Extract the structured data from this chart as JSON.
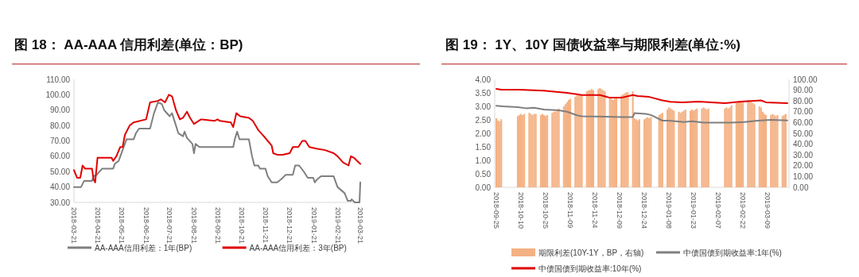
{
  "chart_data": [
    {
      "type": "line",
      "title": "图 18： AA-AAA 信用利差(单位：BP)",
      "xlim": [
        "2018-03-21",
        "2019-03-21"
      ],
      "xticks": [
        "2018-03-21",
        "2018-04-21",
        "2018-05-21",
        "2018-06-21",
        "2018-07-21",
        "2018-08-21",
        "2018-09-21",
        "2018-10-21",
        "2018-11-21",
        "2018-12-21",
        "2019-01-21",
        "2019-02-21",
        "2019-03-21"
      ],
      "ylim": [
        30,
        110
      ],
      "yticks": [
        {
          "value": 30,
          "label": "30.00"
        },
        {
          "value": 40,
          "label": "40.00"
        },
        {
          "value": 50,
          "label": "50.00"
        },
        {
          "value": 60,
          "label": "60.00"
        },
        {
          "value": 70,
          "label": "70.00"
        },
        {
          "value": 80,
          "label": "80.00"
        },
        {
          "value": 90,
          "label": "90.00"
        },
        {
          "value": 100,
          "label": "100.00"
        },
        {
          "value": 110,
          "label": "110.00"
        }
      ],
      "legend": "bottom",
      "series": [
        {
          "name": "AA-AAA信用利差：1年(BP)",
          "color": "#7f7f7f",
          "x": [
            "2018-03-21",
            "2018-03-30",
            "2018-04-03",
            "2018-04-13",
            "2018-04-15",
            "2018-04-19",
            "2018-04-26",
            "2018-05-10",
            "2018-05-12",
            "2018-05-17",
            "2018-05-22",
            "2018-05-27",
            "2018-06-05",
            "2018-06-08",
            "2018-06-12",
            "2018-06-26",
            "2018-07-01",
            "2018-07-06",
            "2018-07-11",
            "2018-07-14",
            "2018-07-21",
            "2018-07-24",
            "2018-07-29",
            "2018-08-01",
            "2018-08-07",
            "2018-08-09",
            "2018-08-12",
            "2018-08-19",
            "2018-08-21",
            "2018-08-23",
            "2018-08-28",
            "2018-10-10",
            "2018-10-12",
            "2018-10-15",
            "2018-10-18",
            "2018-10-30",
            "2018-11-03",
            "2018-11-06",
            "2018-11-11",
            "2018-11-13",
            "2018-11-20",
            "2018-11-23",
            "2018-11-28",
            "2018-12-05",
            "2018-12-10",
            "2018-12-16",
            "2018-12-25",
            "2018-12-28",
            "2019-01-02",
            "2019-01-08",
            "2019-01-13",
            "2019-01-20",
            "2019-01-22",
            "2019-01-25",
            "2019-01-30",
            "2019-02-15",
            "2019-02-20",
            "2019-03-01",
            "2019-03-05",
            "2019-03-09",
            "2019-03-10",
            "2019-03-14",
            "2019-03-20",
            "2019-03-21"
          ],
          "values": [
            40,
            40,
            44,
            44,
            47,
            48,
            52,
            52,
            55,
            57,
            64,
            71,
            71,
            75,
            78,
            78,
            88,
            95,
            94,
            90,
            86,
            88,
            80,
            75,
            73,
            76,
            72,
            68,
            62,
            68,
            66,
            66,
            71,
            76,
            71,
            71,
            60,
            54,
            54,
            52,
            52,
            47,
            43,
            43,
            45,
            48,
            48,
            54,
            54,
            50,
            46,
            46,
            43,
            45,
            47,
            47,
            40,
            36,
            31,
            31,
            32,
            30,
            30,
            43
          ]
        },
        {
          "name": "AA-AAA信用利差：3年(BP)",
          "color": "#e00000",
          "x": [
            "2018-03-21",
            "2018-03-25",
            "2018-03-29",
            "2018-04-01",
            "2018-04-04",
            "2018-04-13",
            "2018-04-15",
            "2018-04-17",
            "2018-04-20",
            "2018-05-08",
            "2018-05-10",
            "2018-05-14",
            "2018-05-19",
            "2018-05-22",
            "2018-05-25",
            "2018-05-31",
            "2018-06-05",
            "2018-06-21",
            "2018-06-26",
            "2018-07-06",
            "2018-07-10",
            "2018-07-15",
            "2018-07-20",
            "2018-07-24",
            "2018-07-29",
            "2018-08-03",
            "2018-08-07",
            "2018-08-12",
            "2018-08-16",
            "2018-08-21",
            "2018-08-30",
            "2018-09-16",
            "2018-09-20",
            "2018-09-23",
            "2018-10-07",
            "2018-10-10",
            "2018-10-14",
            "2018-10-19",
            "2018-10-30",
            "2018-11-04",
            "2018-11-11",
            "2018-11-18",
            "2018-11-23",
            "2018-11-28",
            "2018-11-30",
            "2018-12-05",
            "2018-12-12",
            "2018-12-21",
            "2018-12-25",
            "2019-01-01",
            "2019-01-06",
            "2019-01-10",
            "2019-01-15",
            "2019-01-24",
            "2019-02-04",
            "2019-02-15",
            "2019-02-20",
            "2019-02-27",
            "2019-03-06",
            "2019-03-09",
            "2019-03-13",
            "2019-03-17",
            "2019-03-21"
          ],
          "values": [
            51,
            46,
            46,
            54,
            52,
            52,
            45,
            43,
            59,
            59,
            57,
            60,
            66,
            66,
            74,
            80,
            82,
            84,
            95,
            96,
            97,
            95,
            100,
            99,
            90,
            84,
            85,
            89,
            85,
            81,
            84,
            83,
            84,
            83,
            82,
            79,
            88,
            86,
            85,
            83,
            77,
            73,
            70,
            67,
            62,
            61,
            61,
            62,
            66,
            66,
            70,
            70,
            66,
            65,
            64,
            62,
            60,
            56,
            54,
            60,
            59,
            57,
            55
          ]
        }
      ]
    },
    {
      "type": "bar",
      "title": "图 19： 1Y、10Y 国债收益率与期限利差(单位:%)",
      "xlim": [
        "2018-09-24",
        "2019-03-22"
      ],
      "xticks": [
        "2018-09-25",
        "2018-10-10",
        "2018-10-25",
        "2018-11-09",
        "2018-11-24",
        "2018-12-09",
        "2018-12-24",
        "2019-01-08",
        "2019-01-23",
        "2019-02-07",
        "2019-02-22",
        "2019-03-09"
      ],
      "ylim": [
        0,
        4
      ],
      "yticks": [
        {
          "value": 0,
          "label": "0.00"
        },
        {
          "value": 0.5,
          "label": "0.50"
        },
        {
          "value": 1,
          "label": "1.00"
        },
        {
          "value": 1.5,
          "label": "1.50"
        },
        {
          "value": 2,
          "label": "2.00"
        },
        {
          "value": 2.5,
          "label": "2.50"
        },
        {
          "value": 3,
          "label": "3.00"
        },
        {
          "value": 3.5,
          "label": "3.50"
        },
        {
          "value": 4,
          "label": "4.00"
        }
      ],
      "y2lim": [
        0,
        100
      ],
      "y2ticks": [
        {
          "value": 0,
          "label": "0.00"
        },
        {
          "value": 10,
          "label": "10.00"
        },
        {
          "value": 20,
          "label": "20.00"
        },
        {
          "value": 30,
          "label": "30.00"
        },
        {
          "value": 40,
          "label": "40.00"
        },
        {
          "value": 50,
          "label": "50.00"
        },
        {
          "value": 60,
          "label": "60.00"
        },
        {
          "value": 70,
          "label": "70.00"
        },
        {
          "value": 80,
          "label": "80.00"
        },
        {
          "value": 90,
          "label": "90.00"
        },
        {
          "value": 100,
          "label": "100.00"
        }
      ],
      "legend": "bottom",
      "series": [
        {
          "name": "期限利差(10Y-1Y，BP，右轴)",
          "type": "bar",
          "axis": "y2",
          "color": "#f4b183",
          "x": [
            "2018-09-25",
            "2018-09-26",
            "2018-09-27",
            "2018-09-28",
            "2018-10-08",
            "2018-10-09",
            "2018-10-10",
            "2018-10-11",
            "2018-10-12",
            "2018-10-15",
            "2018-10-16",
            "2018-10-17",
            "2018-10-18",
            "2018-10-19",
            "2018-10-22",
            "2018-10-23",
            "2018-10-24",
            "2018-10-25",
            "2018-10-26",
            "2018-10-29",
            "2018-10-30",
            "2018-10-31",
            "2018-11-01",
            "2018-11-02",
            "2018-11-05",
            "2018-11-06",
            "2018-11-07",
            "2018-11-08",
            "2018-11-09",
            "2018-11-12",
            "2018-11-13",
            "2018-11-14",
            "2018-11-15",
            "2018-11-16",
            "2018-11-19",
            "2018-11-20",
            "2018-11-21",
            "2018-11-22",
            "2018-11-23",
            "2018-11-26",
            "2018-11-27",
            "2018-11-28",
            "2018-11-29",
            "2018-11-30",
            "2018-12-03",
            "2018-12-04",
            "2018-12-05",
            "2018-12-06",
            "2018-12-07",
            "2018-12-10",
            "2018-12-11",
            "2018-12-12",
            "2018-12-13",
            "2018-12-14",
            "2018-12-17",
            "2018-12-18",
            "2018-12-19",
            "2018-12-20",
            "2018-12-21",
            "2018-12-24",
            "2018-12-25",
            "2018-12-26",
            "2018-12-27",
            "2018-12-28",
            "2019-01-02",
            "2019-01-03",
            "2019-01-04",
            "2019-01-07",
            "2019-01-08",
            "2019-01-09",
            "2019-01-10",
            "2019-01-11",
            "2019-01-14",
            "2019-01-15",
            "2019-01-16",
            "2019-01-17",
            "2019-01-18",
            "2019-01-21",
            "2019-01-22",
            "2019-01-23",
            "2019-01-24",
            "2019-01-25",
            "2019-01-28",
            "2019-01-29",
            "2019-01-30",
            "2019-01-31",
            "2019-02-01",
            "2019-02-11",
            "2019-02-12",
            "2019-02-13",
            "2019-02-14",
            "2019-02-15",
            "2019-02-18",
            "2019-02-19",
            "2019-02-20",
            "2019-02-21",
            "2019-02-22",
            "2019-02-25",
            "2019-02-26",
            "2019-02-27",
            "2019-02-28",
            "2019-03-01",
            "2019-03-04",
            "2019-03-05",
            "2019-03-06",
            "2019-03-07",
            "2019-03-08",
            "2019-03-11",
            "2019-03-12",
            "2019-03-13",
            "2019-03-14",
            "2019-03-15",
            "2019-03-18",
            "2019-03-19",
            "2019-03-20"
          ],
          "values": [
            64,
            62,
            61,
            63,
            66,
            67,
            68,
            67,
            68,
            69,
            68,
            67,
            68,
            68,
            67,
            68,
            67,
            66,
            67,
            69,
            70,
            70,
            72,
            73,
            75,
            77,
            79,
            81,
            82,
            84,
            85,
            86,
            85,
            86,
            89,
            90,
            90,
            91,
            90,
            91,
            92,
            91,
            90,
            89,
            83,
            82,
            81,
            82,
            83,
            85,
            86,
            87,
            88,
            88,
            89,
            64,
            63,
            62,
            63,
            63,
            64,
            65,
            64,
            65,
            67,
            68,
            69,
            72,
            74,
            73,
            72,
            71,
            70,
            69,
            70,
            71,
            72,
            71,
            72,
            71,
            72,
            73,
            73,
            74,
            73,
            72,
            73,
            73,
            74,
            73,
            74,
            76,
            78,
            79,
            80,
            79,
            80,
            81,
            80,
            79,
            78,
            77,
            75,
            74,
            70,
            68,
            67,
            67,
            68,
            67,
            66,
            67,
            66,
            67,
            68
          ]
        },
        {
          "name": "中债国债到期收益率:1年(%)",
          "type": "line",
          "color": "#7f7f7f",
          "x": [
            "2018-09-25",
            "2018-09-29",
            "2018-10-08",
            "2018-10-13",
            "2018-10-18",
            "2018-10-24",
            "2018-11-02",
            "2018-11-07",
            "2018-11-13",
            "2018-11-16",
            "2018-11-30",
            "2018-12-10",
            "2018-12-17",
            "2018-12-18",
            "2018-12-25",
            "2018-12-28",
            "2018-12-30",
            "2019-01-04",
            "2019-01-08",
            "2019-01-17",
            "2019-01-22",
            "2019-01-29",
            "2019-02-15",
            "2019-02-23",
            "2019-03-03",
            "2019-03-11",
            "2019-03-21"
          ],
          "values": [
            3.02,
            3.0,
            2.97,
            2.93,
            2.95,
            2.88,
            2.85,
            2.8,
            2.67,
            2.63,
            2.62,
            2.6,
            2.6,
            2.75,
            2.72,
            2.68,
            2.62,
            2.47,
            2.47,
            2.42,
            2.45,
            2.4,
            2.4,
            2.42,
            2.47,
            2.5,
            2.48
          ]
        },
        {
          "name": "中债国债到期收益率:10年(%)",
          "type": "line",
          "color": "#e00000",
          "x": [
            "2018-09-25",
            "2018-09-28",
            "2018-10-09",
            "2018-10-24",
            "2018-11-07",
            "2018-11-13",
            "2018-11-16",
            "2018-11-27",
            "2018-12-03",
            "2018-12-10",
            "2018-12-17",
            "2018-12-20",
            "2018-12-27",
            "2019-01-04",
            "2019-01-09",
            "2019-01-16",
            "2019-01-26",
            "2019-02-11",
            "2019-02-21",
            "2019-03-05",
            "2019-03-08",
            "2019-03-21"
          ],
          "values": [
            3.65,
            3.62,
            3.62,
            3.58,
            3.5,
            3.45,
            3.42,
            3.42,
            3.32,
            3.32,
            3.42,
            3.38,
            3.35,
            3.22,
            3.17,
            3.15,
            3.18,
            3.12,
            3.18,
            3.22,
            3.15,
            3.12
          ]
        }
      ]
    }
  ]
}
